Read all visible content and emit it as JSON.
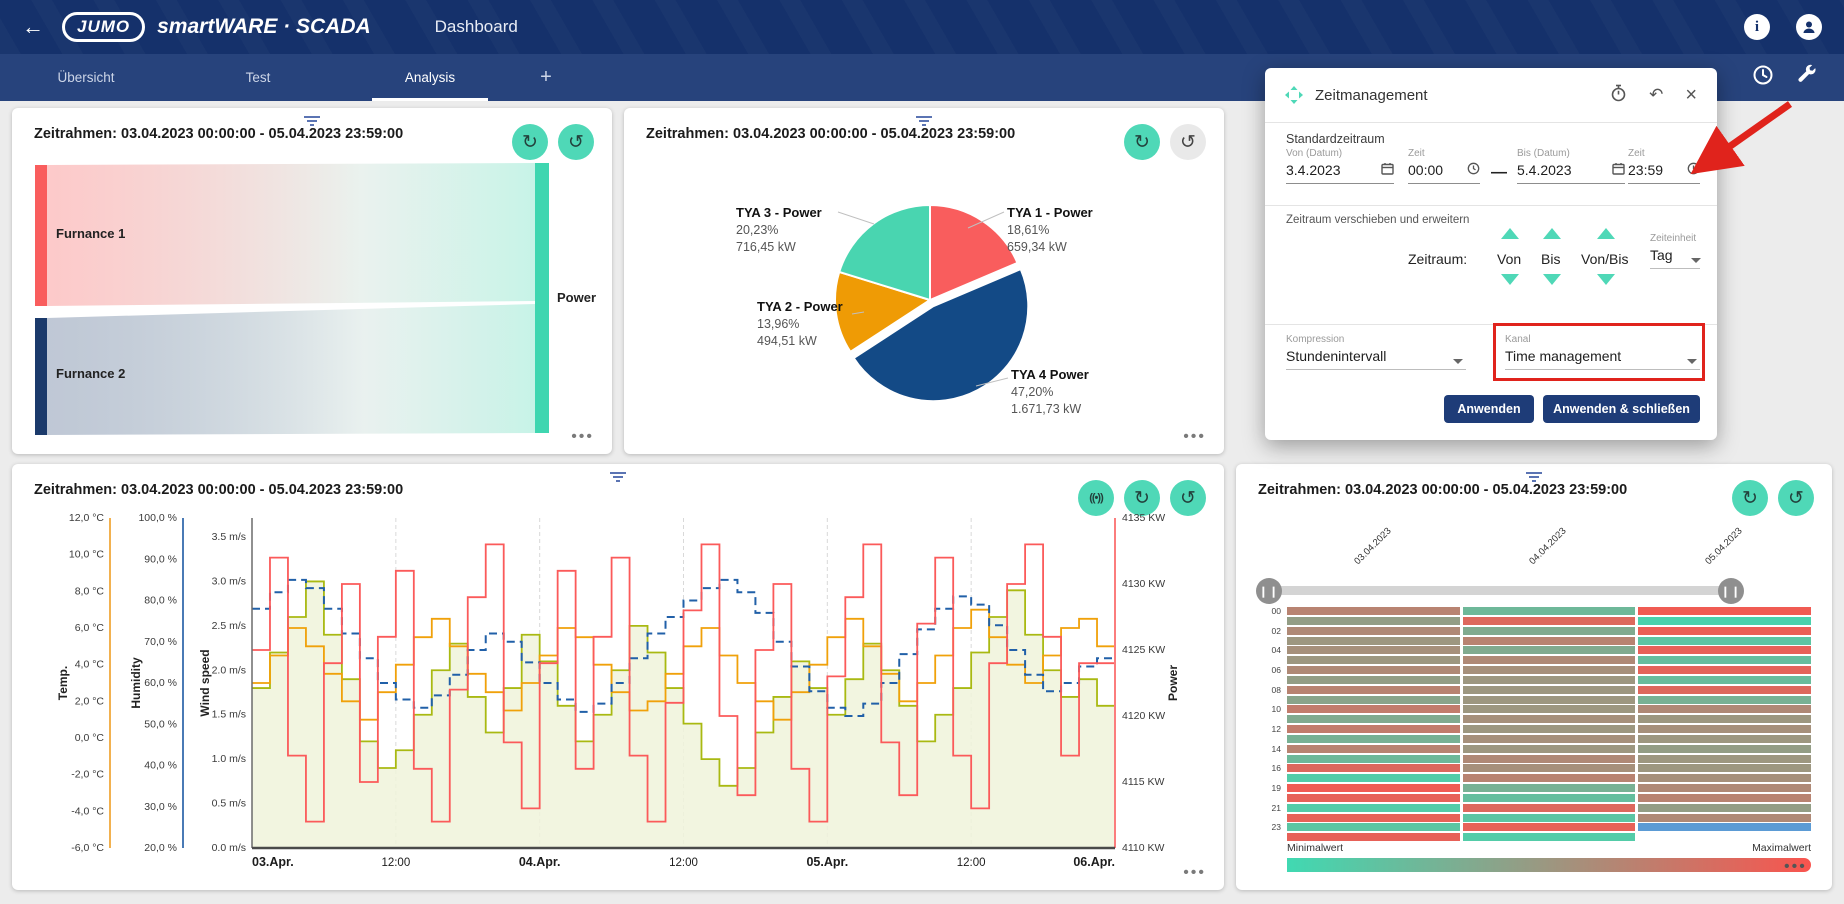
{
  "header": {
    "brand": "JUMO",
    "product": "smartWARE · SCADA",
    "page_title": "Dashboard",
    "icons": [
      "info",
      "account"
    ]
  },
  "tabs": {
    "items": [
      {
        "label": "Übersicht",
        "active": false
      },
      {
        "label": "Test",
        "active": false
      },
      {
        "label": "Analysis",
        "active": true
      }
    ],
    "add_label": "+"
  },
  "dialog": {
    "title": "Zeitmanagement",
    "section_standard": "Standardzeitraum",
    "von_label": "Von (Datum)",
    "von_value": "3.4.2023",
    "zeit1_label": "Zeit",
    "zeit1_value": "00:00",
    "bis_label": "Bis (Datum)",
    "bis_value": "5.4.2023",
    "zeit2_label": "Zeit",
    "zeit2_value": "23:59",
    "section_shift": "Zeitraum verschieben und erweitern",
    "zeitraum_label": "Zeitraum:",
    "shift_cols": [
      "Von",
      "Bis",
      "Von/Bis"
    ],
    "zeiteinheit_label": "Zeiteinheit",
    "zeiteinheit_value": "Tag",
    "kompression_label": "Kompression",
    "kompression_value": "Stundenintervall",
    "kanal_label": "Kanal",
    "kanal_value": "Time management",
    "apply_label": "Anwenden",
    "apply_close_label": "Anwenden & schließen"
  },
  "chart_data": [
    {
      "type": "sankey",
      "title": "Zeitrahmen: 03.04.2023 00:00:00 - 05.04.2023 23:59:00",
      "nodes": [
        {
          "label": "Furnance 1",
          "color": "#f95d5d"
        },
        {
          "label": "Furnance 2",
          "color": "#1b3a6b"
        },
        {
          "label": "Power",
          "color": "#3fd6b0"
        }
      ],
      "flows": [
        {
          "source": "Furnance 1",
          "target": "Power"
        },
        {
          "source": "Furnance 2",
          "target": "Power"
        }
      ]
    },
    {
      "type": "pie",
      "title": "Zeitrahmen: 03.04.2023 00:00:00 - 05.04.2023 23:59:00",
      "slices": [
        {
          "name": "TYA 1 - Power",
          "pct": "18,61%",
          "kw": "659,34 kW",
          "value": 18.61,
          "color": "#f95d5d",
          "explode": false
        },
        {
          "name": "TYA 4 Power",
          "pct": "47,20%",
          "kw": "1.671,73 kW",
          "value": 47.2,
          "color": "#134a86",
          "explode": true
        },
        {
          "name": "TYA 2 - Power",
          "pct": "13,96%",
          "kw": "494,51 kW",
          "value": 13.96,
          "color": "#ef9b05",
          "explode": false
        },
        {
          "name": "TYA 3 - Power",
          "pct": "20,23%",
          "kw": "716,45 kW",
          "value": 20.23,
          "color": "#49d5b0",
          "explode": false
        }
      ]
    },
    {
      "type": "line",
      "title": "Zeitrahmen: 03.04.2023 00:00:00 - 05.04.2023 23:59:00",
      "x_ticks": [
        "03.Apr.",
        "12:00",
        "04.Apr.",
        "12:00",
        "05.Apr.",
        "12:00",
        "06.Apr."
      ],
      "axes": [
        {
          "name": "Temp.",
          "ticks": [
            "12,0 °C",
            "10,0 °C",
            "8,0 °C",
            "6,0 °C",
            "4,0 °C",
            "2,0 °C",
            "0,0 °C",
            "-2,0 °C",
            "-4,0 °C",
            "-6,0 °C"
          ],
          "color": "#f2b14f",
          "range": [
            -6,
            12
          ]
        },
        {
          "name": "Humidity",
          "ticks": [
            "100,0 %",
            "90,0 %",
            "80,0 %",
            "70,0 %",
            "60,0 %",
            "50,0 %",
            "40,0 %",
            "30,0 %",
            "20,0 %"
          ],
          "color": "#4a7ab5",
          "range": [
            20,
            100
          ]
        },
        {
          "name": "Wind speed",
          "ticks": [
            "3.5 m/s",
            "3.0 m/s",
            "2.5 m/s",
            "2.0 m/s",
            "1.5 m/s",
            "1.0 m/s",
            "0.5 m/s",
            "0.0 m/s"
          ],
          "color": "#555555",
          "range": [
            0,
            3.5
          ]
        },
        {
          "name": "Power",
          "ticks": [
            "4135 KW",
            "4130 KW",
            "4125 KW",
            "4120 KW",
            "4115 KW",
            "4110 KW"
          ],
          "color": "#fb7d7d",
          "range": [
            4110,
            4135
          ]
        }
      ],
      "series": [
        {
          "name": "Power",
          "axis": 3,
          "color": "#fb5a5a",
          "style": "step",
          "values": [
            4125,
            4132,
            4117,
            4112,
            4124,
            4130,
            4115,
            4126,
            4131,
            4116,
            4112,
            4122,
            4129,
            4133,
            4118,
            4113,
            4124,
            4131,
            4116,
            4126,
            4132,
            4117,
            4112,
            4121,
            4128,
            4133,
            4120,
            4114,
            4125,
            4130,
            4116,
            4112,
            4123,
            4129,
            4133,
            4118,
            4114,
            4127,
            4132,
            4117,
            4113,
            4124,
            4130,
            4133,
            4126,
            4117,
            4124,
            4124
          ]
        },
        {
          "name": "Temp.",
          "axis": 0,
          "color": "#f0a10a",
          "style": "step",
          "values": [
            3.0,
            4.5,
            6.0,
            5.0,
            3.5,
            2.0,
            1.0,
            2.5,
            4.0,
            5.5,
            6.5,
            5.0,
            3.5,
            2.5,
            1.5,
            3.0,
            4.5,
            6.0,
            5.5,
            4.0,
            2.5,
            1.5,
            2.0,
            3.5,
            5.0,
            6.0,
            4.5,
            3.0,
            2.0,
            1.0,
            2.5,
            4.0,
            5.5,
            6.5,
            5.0,
            3.5,
            2.0,
            3.0,
            4.5,
            6.0,
            7.0,
            5.5,
            4.0,
            3.0,
            4.5,
            6.0,
            6.5,
            5.0
          ]
        },
        {
          "name": "Wind speed",
          "axis": 2,
          "color": "#a9b912",
          "style": "step-area",
          "fill": "#f0f3da",
          "values": [
            1.8,
            2.2,
            2.6,
            3.0,
            2.4,
            1.9,
            1.2,
            0.9,
            1.1,
            1.5,
            2.0,
            2.3,
            1.7,
            1.3,
            1.8,
            2.4,
            2.1,
            1.6,
            1.2,
            1.5,
            2.0,
            2.5,
            2.2,
            1.8,
            1.4,
            1.0,
            0.7,
            0.9,
            1.3,
            1.7,
            2.1,
            1.8,
            1.5,
            1.9,
            2.3,
            2.0,
            1.6,
            1.2,
            1.5,
            1.8,
            2.2,
            2.6,
            2.9,
            2.4,
            2.0,
            1.7,
            1.9,
            1.6
          ]
        },
        {
          "name": "Humidity",
          "axis": 1,
          "color": "#2160a8",
          "style": "step-dashed",
          "values": [
            78,
            82,
            85,
            83,
            78,
            72,
            66,
            60,
            56,
            54,
            57,
            62,
            68,
            72,
            70,
            65,
            60,
            56,
            53,
            55,
            60,
            66,
            72,
            76,
            80,
            83,
            85,
            82,
            77,
            70,
            64,
            58,
            54,
            52,
            55,
            60,
            67,
            73,
            78,
            81,
            79,
            74,
            68,
            62,
            58,
            60,
            64,
            66
          ]
        }
      ]
    },
    {
      "type": "heatmap",
      "title": "Zeitrahmen: 03.04.2023 00:00:00 - 05.04.2023 23:59:00",
      "columns": [
        "03.04.2023",
        "04.04.2023",
        "05.04.2023"
      ],
      "row_labels": [
        "00",
        "02",
        "04",
        "06",
        "08",
        "10",
        "12",
        "14",
        "16",
        "19",
        "21",
        "23"
      ],
      "legend_min": "Minimalwert",
      "legend_max": "Maximalwert",
      "color_min": "#40d9b2",
      "color_max": "#f9544e",
      "color_special": "#5b9bd5",
      "grid": [
        [
          0.65,
          0.25,
          0.95
        ],
        [
          0.45,
          0.85,
          0.05
        ],
        [
          0.6,
          0.35,
          0.92
        ],
        [
          0.5,
          0.65,
          0.15
        ],
        [
          0.55,
          0.35,
          0.9
        ],
        [
          0.5,
          0.6,
          0.2
        ],
        [
          0.6,
          0.55,
          0.88
        ],
        [
          0.45,
          0.5,
          0.22
        ],
        [
          0.65,
          0.5,
          0.85
        ],
        [
          0.4,
          0.5,
          0.3
        ],
        [
          0.7,
          0.5,
          0.6
        ],
        [
          0.35,
          0.55,
          0.5
        ],
        [
          0.7,
          0.5,
          0.55
        ],
        [
          0.3,
          0.55,
          0.5
        ],
        [
          0.65,
          0.5,
          0.45
        ],
        [
          0.25,
          0.6,
          0.5
        ],
        [
          0.85,
          0.55,
          0.5
        ],
        [
          0.1,
          0.65,
          0.55
        ],
        [
          0.95,
          0.3,
          0.6
        ],
        [
          0.9,
          0.2,
          0.65
        ],
        [
          0.1,
          0.85,
          0.45
        ],
        [
          0.9,
          0.15,
          0.6
        ],
        [
          0.15,
          0.9,
          "b"
        ],
        [
          0.9,
          0.1,
          null
        ]
      ]
    }
  ]
}
